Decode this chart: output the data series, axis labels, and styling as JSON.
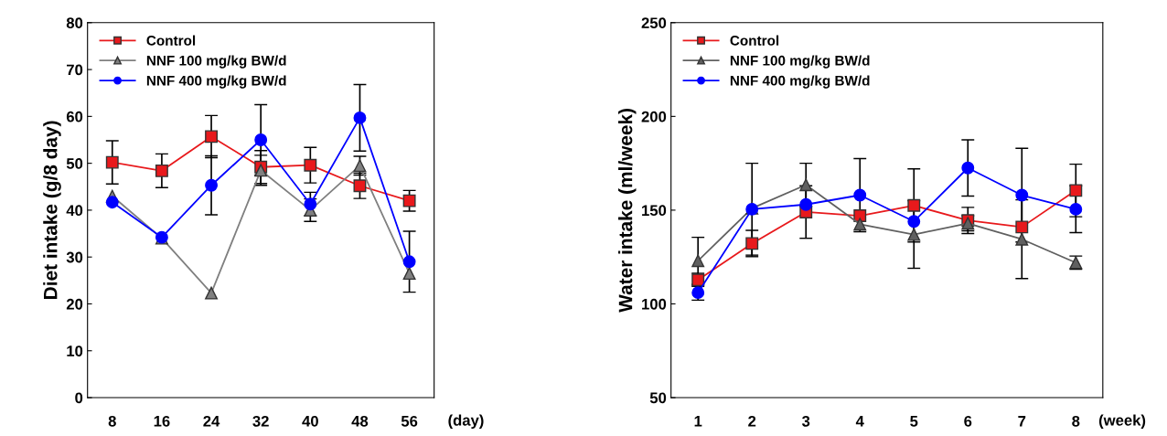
{
  "chart_data": [
    {
      "type": "line",
      "ylabel": "Diet intake (g/8 day)",
      "xlabel": "(day)",
      "categories": [
        "8",
        "16",
        "24",
        "32",
        "40",
        "48",
        "56"
      ],
      "ylim": [
        0,
        80
      ],
      "yticks": [
        0,
        10,
        20,
        30,
        40,
        50,
        60,
        70,
        80
      ],
      "grid": false,
      "legend": "top left",
      "series": [
        {
          "name": "Control",
          "color": "#e8191c",
          "marker": "square",
          "values": [
            50.2,
            48.4,
            55.7,
            49.2,
            49.6,
            45.2,
            42.0
          ],
          "errors": [
            4.6,
            3.6,
            4.5,
            3.5,
            3.8,
            2.7,
            2.2
          ]
        },
        {
          "name": "NNF 100 mg/kg BW/d",
          "color": "#808080",
          "marker": "triangle",
          "values": [
            43.0,
            34.0,
            22.3,
            48.5,
            40.0,
            49.5,
            26.5
          ],
          "errors": [
            null,
            null,
            null,
            3.2,
            2.4,
            2.0,
            null
          ]
        },
        {
          "name": "NNF 400 mg/kg BW/d",
          "color": "#0000ff",
          "marker": "circle",
          "values": [
            41.7,
            34.2,
            45.3,
            55.0,
            41.3,
            59.7,
            29.0
          ],
          "errors": [
            null,
            null,
            6.3,
            7.5,
            2.5,
            7.1,
            6.5
          ]
        }
      ]
    },
    {
      "type": "line",
      "ylabel": "Water intake (ml/week)",
      "xlabel": "(week)",
      "categories": [
        "1",
        "2",
        "3",
        "4",
        "5",
        "6",
        "7",
        "8"
      ],
      "ylim": [
        50,
        250
      ],
      "yticks": [
        50,
        100,
        150,
        200,
        250
      ],
      "grid": false,
      "legend": "top left",
      "series": [
        {
          "name": "Control",
          "color": "#e8191c",
          "marker": "square",
          "values": [
            112.8,
            132.2,
            149.0,
            147.0,
            152.5,
            144.5,
            141.0,
            160.5
          ],
          "errors": [
            3.5,
            7.0,
            14.0,
            null,
            19.5,
            7.0,
            null,
            14.0
          ]
        },
        {
          "name": "NNF 100 mg/kg BW/d",
          "color": "#606060",
          "marker": "triangle",
          "values": [
            123.0,
            151.0,
            163.5,
            142.5,
            137.0,
            143.0,
            134.5,
            122.0
          ],
          "errors": [
            12.5,
            null,
            11.5,
            null,
            18.0,
            4.0,
            21.0,
            3.5
          ]
        },
        {
          "name": "NNF 400 mg/kg BW/d",
          "color": "#0000ff",
          "marker": "circle",
          "values": [
            106.0,
            150.5,
            153.0,
            158.0,
            144.0,
            172.5,
            158.0,
            150.5
          ],
          "errors": [
            4.0,
            24.5,
            null,
            19.5,
            null,
            15.0,
            25.0,
            12.5
          ]
        }
      ]
    }
  ]
}
